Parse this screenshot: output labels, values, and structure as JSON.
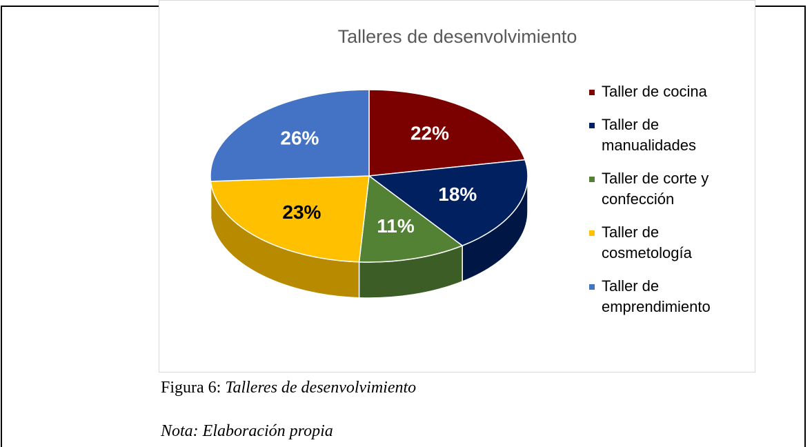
{
  "chart_data": {
    "type": "pie",
    "title": "Talleres de desenvolvimiento",
    "categories": [
      "Taller de cocina",
      "Taller de manualidades",
      "Taller de corte y confección",
      "Taller de cosmetología",
      "Taller de emprendimiento"
    ],
    "values": [
      22,
      18,
      11,
      23,
      26
    ],
    "value_labels": [
      "22%",
      "18%",
      "11%",
      "23%",
      "26%"
    ],
    "colors": [
      "#7b0000",
      "#002060",
      "#548235",
      "#ffc000",
      "#4472c4"
    ],
    "legend": "right"
  },
  "caption": {
    "label": "Figura 6:",
    "title": "Talleres de desenvolvimiento"
  },
  "note": "Nota: Elaboración propia"
}
